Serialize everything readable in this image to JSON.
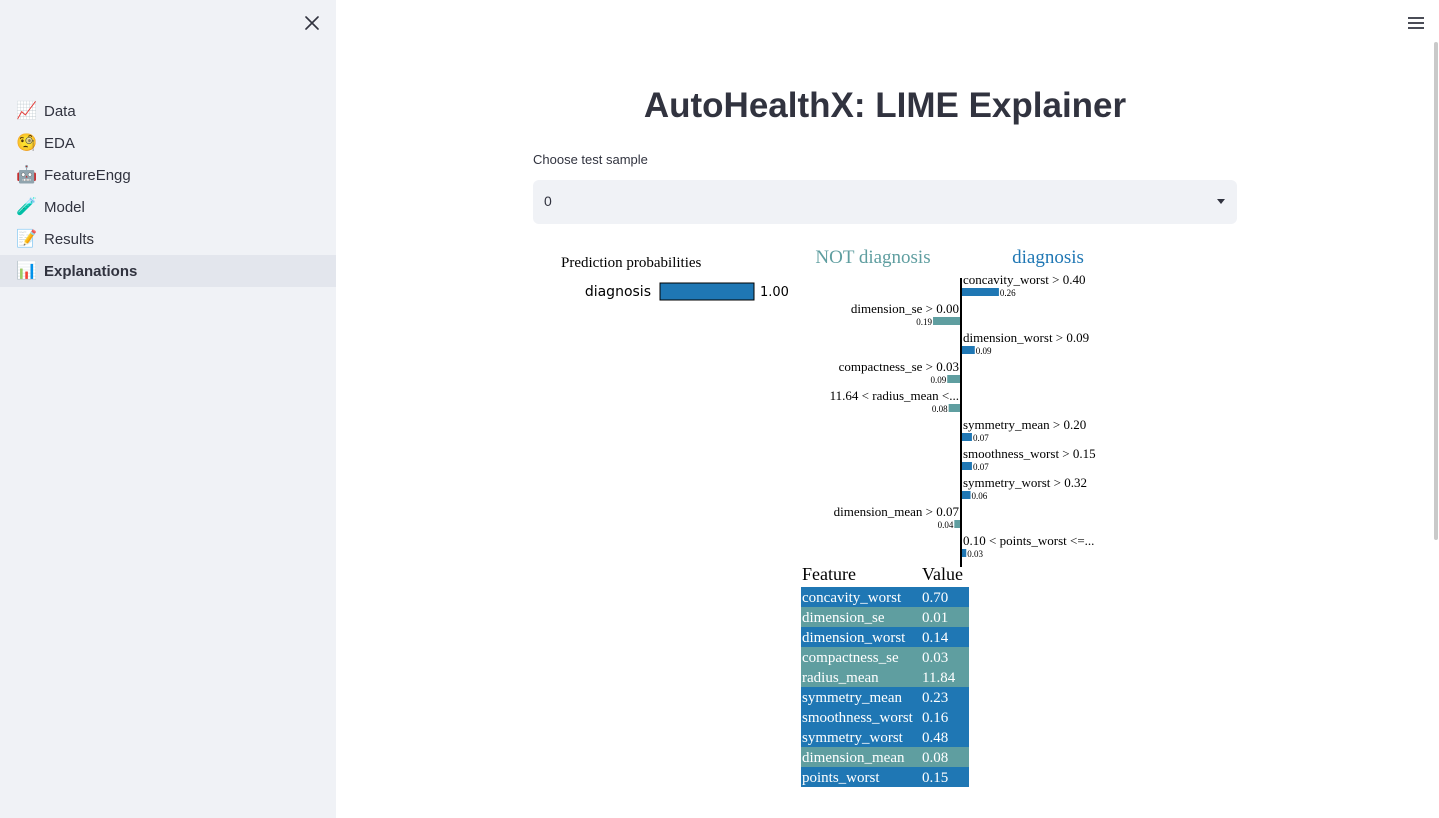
{
  "sidebar": {
    "items": [
      {
        "emoji": "📈",
        "label": "Data",
        "active": false
      },
      {
        "emoji": "🧐",
        "label": "EDA",
        "active": false
      },
      {
        "emoji": "🤖",
        "label": "FeatureEngg",
        "active": false
      },
      {
        "emoji": "🧪",
        "label": "Model",
        "active": false
      },
      {
        "emoji": "📝",
        "label": "Results",
        "active": false
      },
      {
        "emoji": "📊",
        "label": "Explanations",
        "active": true
      }
    ]
  },
  "main": {
    "title": "AutoHealthX: LIME Explainer",
    "select_label": "Choose test sample",
    "select_value": "0"
  },
  "colors": {
    "positive": "#1f77b4",
    "negative": "#5f9ea0",
    "sidebar_bg": "#f0f2f6"
  },
  "chart_data": [
    {
      "type": "bar",
      "title": "Prediction probabilities",
      "categories": [
        "diagnosis"
      ],
      "values": [
        1.0
      ],
      "value_labels": [
        "1.00"
      ],
      "xlim": [
        0,
        1
      ]
    },
    {
      "type": "bar",
      "orientation": "horizontal",
      "negative_label": "NOT diagnosis",
      "positive_label": "diagnosis",
      "features": [
        {
          "label": "concavity_worst > 0.40",
          "weight": 0.26,
          "weight_label": "0.26"
        },
        {
          "label": "dimension_se > 0.00",
          "weight": -0.19,
          "weight_label": "0.19"
        },
        {
          "label": "dimension_worst > 0.09",
          "weight": 0.09,
          "weight_label": "0.09"
        },
        {
          "label": "compactness_se > 0.03",
          "weight": -0.09,
          "weight_label": "0.09"
        },
        {
          "label": "11.64 < radius_mean <...",
          "weight": -0.08,
          "weight_label": "0.08"
        },
        {
          "label": "symmetry_mean > 0.20",
          "weight": 0.07,
          "weight_label": "0.07"
        },
        {
          "label": "smoothness_worst > 0.15",
          "weight": 0.07,
          "weight_label": "0.07"
        },
        {
          "label": "symmetry_worst > 0.32",
          "weight": 0.06,
          "weight_label": "0.06"
        },
        {
          "label": "dimension_mean > 0.07",
          "weight": -0.04,
          "weight_label": "0.04"
        },
        {
          "label": "0.10 < points_worst <=...",
          "weight": 0.03,
          "weight_label": "0.03"
        }
      ]
    },
    {
      "type": "table",
      "columns": [
        "Feature",
        "Value"
      ],
      "rows": [
        {
          "feature": "concavity_worst",
          "value": "0.70",
          "sign": "positive"
        },
        {
          "feature": "dimension_se",
          "value": "0.01",
          "sign": "negative"
        },
        {
          "feature": "dimension_worst",
          "value": "0.14",
          "sign": "positive"
        },
        {
          "feature": "compactness_se",
          "value": "0.03",
          "sign": "negative"
        },
        {
          "feature": "radius_mean",
          "value": "11.84",
          "sign": "negative"
        },
        {
          "feature": "symmetry_mean",
          "value": "0.23",
          "sign": "positive"
        },
        {
          "feature": "smoothness_worst",
          "value": "0.16",
          "sign": "positive"
        },
        {
          "feature": "symmetry_worst",
          "value": "0.48",
          "sign": "positive"
        },
        {
          "feature": "dimension_mean",
          "value": "0.08",
          "sign": "negative"
        },
        {
          "feature": "points_worst",
          "value": "0.15",
          "sign": "positive"
        }
      ]
    }
  ]
}
